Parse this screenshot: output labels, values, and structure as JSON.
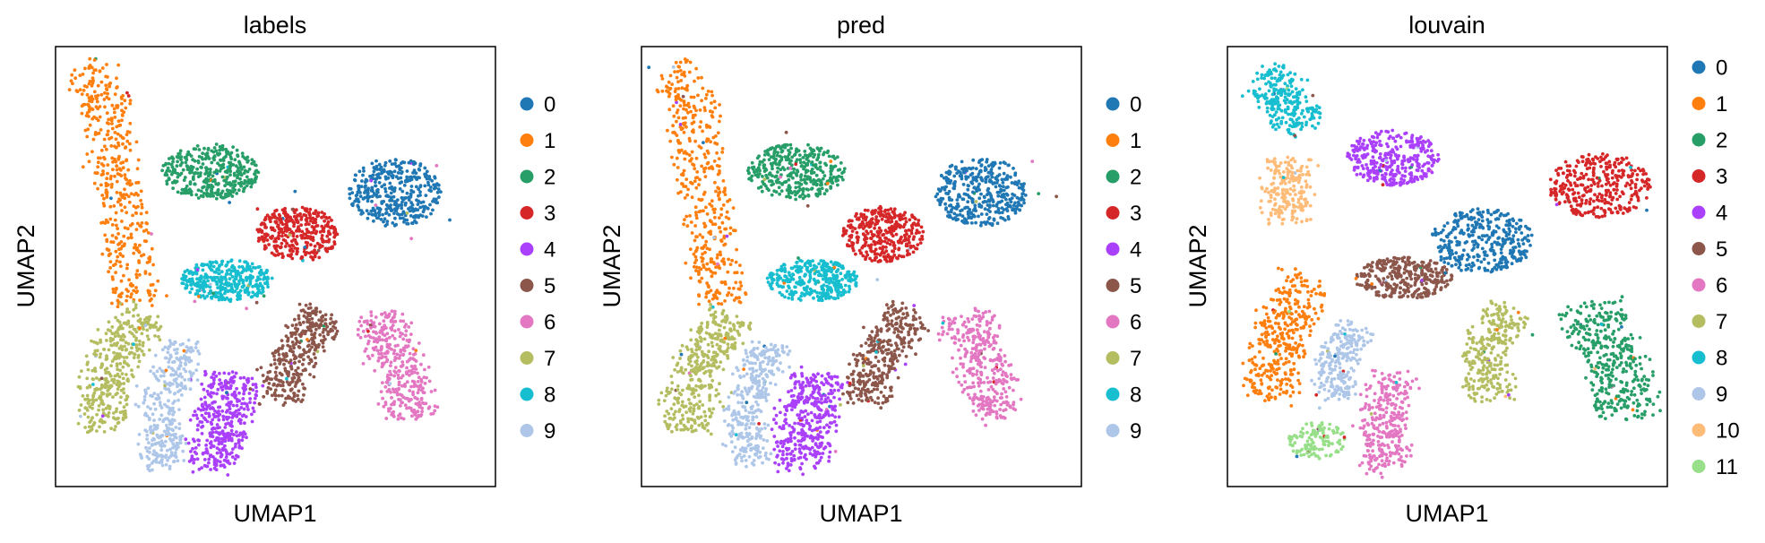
{
  "chart_data": [
    {
      "type": "scatter",
      "title": "labels",
      "xlabel": "UMAP1",
      "ylabel": "UMAP2",
      "ticks_shown": false,
      "legend_placement": "right",
      "legend": [
        "0",
        "1",
        "2",
        "3",
        "4",
        "5",
        "6",
        "7",
        "8",
        "9"
      ],
      "clusters": [
        {
          "name": "1",
          "color": "#ff7f0e",
          "path": [
            [
              -7.6,
              10.1
            ],
            [
              -6.7,
              9.0
            ],
            [
              -6.6,
              6.6
            ],
            [
              -6.2,
              4.3
            ],
            [
              -5.9,
              1.9
            ],
            [
              -5.6,
              -0.1
            ]
          ],
          "w": 1.0,
          "n": 430
        },
        {
          "name": "2",
          "color": "#279e68",
          "cx": -2.9,
          "cy": 5.6,
          "rx": 1.8,
          "ry": 1.2,
          "n": 360
        },
        {
          "name": "0",
          "color": "#1f77b4",
          "cx": 3.9,
          "cy": 4.7,
          "rx": 1.7,
          "ry": 1.5,
          "n": 380
        },
        {
          "name": "3",
          "color": "#d62728",
          "cx": 0.3,
          "cy": 2.9,
          "rx": 1.5,
          "ry": 1.2,
          "n": 340
        },
        {
          "name": "8",
          "color": "#17becf",
          "cx": -2.3,
          "cy": 0.9,
          "rx": 1.7,
          "ry": 0.9,
          "n": 340
        },
        {
          "name": "5",
          "color": "#8c564b",
          "path": [
            [
              1.4,
              -0.5
            ],
            [
              0.6,
              -1.5
            ],
            [
              -0.2,
              -3.0
            ],
            [
              -0.3,
              -4.3
            ]
          ],
          "w": 0.95,
          "n": 340
        },
        {
          "name": "6",
          "color": "#e377c2",
          "path": [
            [
              3.2,
              -0.6
            ],
            [
              3.8,
              -2.0
            ],
            [
              4.2,
              -3.4
            ],
            [
              4.5,
              -5.0
            ]
          ],
          "w": 1.05,
          "n": 340
        },
        {
          "name": "7",
          "color": "#b5bd61",
          "path": [
            [
              -5.2,
              -0.6
            ],
            [
              -6.2,
              -2.0
            ],
            [
              -6.9,
              -3.6
            ],
            [
              -6.8,
              -5.6
            ]
          ],
          "w": 1.0,
          "n": 380
        },
        {
          "name": "9",
          "color": "#aec7e8",
          "path": [
            [
              -3.8,
              -1.8
            ],
            [
              -4.3,
              -3.2
            ],
            [
              -4.8,
              -4.6
            ],
            [
              -4.6,
              -7.1
            ]
          ],
          "w": 0.8,
          "n": 330
        },
        {
          "name": "4",
          "color": "#aa40fc",
          "path": [
            [
              -2.0,
              -3.2
            ],
            [
              -2.3,
              -4.4
            ],
            [
              -2.8,
              -5.8
            ],
            [
              -2.6,
              -7.2
            ]
          ],
          "w": 1.1,
          "n": 380
        }
      ]
    },
    {
      "type": "scatter",
      "title": "pred",
      "xlabel": "UMAP1",
      "ylabel": "UMAP2",
      "ticks_shown": false,
      "legend_placement": "right",
      "legend": [
        "0",
        "1",
        "2",
        "3",
        "4",
        "5",
        "6",
        "7",
        "8",
        "9"
      ],
      "clusters": [
        {
          "name": "1",
          "color": "#ff7f0e",
          "path": [
            [
              -7.6,
              10.1
            ],
            [
              -6.7,
              9.0
            ],
            [
              -6.6,
              6.6
            ],
            [
              -6.2,
              4.3
            ],
            [
              -5.9,
              1.9
            ],
            [
              -5.6,
              -0.1
            ]
          ],
          "w": 1.0,
          "n": 430
        },
        {
          "name": "2",
          "color": "#279e68",
          "cx": -2.9,
          "cy": 5.6,
          "rx": 1.8,
          "ry": 1.2,
          "n": 360
        },
        {
          "name": "0",
          "color": "#1f77b4",
          "cx": 3.9,
          "cy": 4.7,
          "rx": 1.7,
          "ry": 1.5,
          "n": 380
        },
        {
          "name": "3",
          "color": "#d62728",
          "cx": 0.3,
          "cy": 2.9,
          "rx": 1.5,
          "ry": 1.2,
          "n": 340
        },
        {
          "name": "8",
          "color": "#17becf",
          "cx": -2.3,
          "cy": 0.9,
          "rx": 1.7,
          "ry": 0.9,
          "n": 340
        },
        {
          "name": "5",
          "color": "#8c564b",
          "path": [
            [
              1.4,
              -0.5
            ],
            [
              0.6,
              -1.5
            ],
            [
              -0.2,
              -3.0
            ],
            [
              -0.3,
              -4.3
            ]
          ],
          "w": 0.95,
          "n": 340
        },
        {
          "name": "6",
          "color": "#e377c2",
          "path": [
            [
              3.2,
              -0.6
            ],
            [
              3.8,
              -2.0
            ],
            [
              4.2,
              -3.4
            ],
            [
              4.5,
              -5.0
            ]
          ],
          "w": 1.05,
          "n": 340
        },
        {
          "name": "7",
          "color": "#b5bd61",
          "path": [
            [
              -5.2,
              -0.6
            ],
            [
              -6.2,
              -2.0
            ],
            [
              -6.9,
              -3.6
            ],
            [
              -6.8,
              -5.6
            ]
          ],
          "w": 1.0,
          "n": 380
        },
        {
          "name": "9",
          "color": "#aec7e8",
          "path": [
            [
              -3.8,
              -1.8
            ],
            [
              -4.3,
              -3.2
            ],
            [
              -4.8,
              -4.6
            ],
            [
              -4.6,
              -7.1
            ]
          ],
          "w": 0.8,
          "n": 330
        },
        {
          "name": "4",
          "color": "#aa40fc",
          "path": [
            [
              -2.0,
              -3.2
            ],
            [
              -2.3,
              -4.4
            ],
            [
              -2.8,
              -5.8
            ],
            [
              -2.6,
              -7.2
            ]
          ],
          "w": 1.1,
          "n": 380
        }
      ]
    },
    {
      "type": "scatter",
      "title": "louvain",
      "xlabel": "UMAP1",
      "ylabel": "UMAP2",
      "ticks_shown": false,
      "legend_placement": "right",
      "legend": [
        "0",
        "1",
        "2",
        "3",
        "4",
        "5",
        "6",
        "7",
        "8",
        "9",
        "10",
        "11"
      ],
      "clusters": [
        {
          "name": "8",
          "color": "#17becf",
          "path": [
            [
              -7.3,
              9.8
            ],
            [
              -6.5,
              8.9
            ],
            [
              -5.9,
              7.4
            ]
          ],
          "w": 1.0,
          "n": 250
        },
        {
          "name": "10",
          "color": "#ffbb78",
          "path": [
            [
              -6.3,
              6.1
            ],
            [
              -6.4,
              4.8
            ],
            [
              -6.5,
              3.5
            ]
          ],
          "w": 0.95,
          "n": 200
        },
        {
          "name": "4",
          "color": "#aa40fc",
          "cx": -2.5,
          "cy": 6.2,
          "rx": 1.7,
          "ry": 1.2,
          "n": 330
        },
        {
          "name": "3",
          "color": "#d62728",
          "cx": 5.1,
          "cy": 5.0,
          "rx": 1.9,
          "ry": 1.4,
          "n": 340
        },
        {
          "name": "0",
          "color": "#1f77b4",
          "cx": 0.8,
          "cy": 2.6,
          "rx": 1.9,
          "ry": 1.4,
          "n": 360
        },
        {
          "name": "5",
          "color": "#8c564b",
          "cx": -2.1,
          "cy": 1.0,
          "rx": 1.8,
          "ry": 0.9,
          "n": 310
        },
        {
          "name": "2",
          "color": "#279e68",
          "path": [
            [
              4.6,
              -0.1
            ],
            [
              5.3,
              -1.8
            ],
            [
              5.9,
              -3.2
            ],
            [
              6.1,
              -5.0
            ]
          ],
          "w": 1.3,
          "n": 370
        },
        {
          "name": "7",
          "color": "#b5bd61",
          "path": [
            [
              1.8,
              -0.3
            ],
            [
              1.0,
              -1.6
            ],
            [
              0.8,
              -3.0
            ],
            [
              1.2,
              -4.2
            ]
          ],
          "w": 0.95,
          "n": 280
        },
        {
          "name": "1",
          "color": "#ff7f0e",
          "path": [
            [
              -5.6,
              1.0
            ],
            [
              -6.3,
              -0.5
            ],
            [
              -6.9,
              -2.2
            ],
            [
              -7.0,
              -4.2
            ]
          ],
          "w": 1.1,
          "n": 360
        },
        {
          "name": "9",
          "color": "#aec7e8",
          "path": [
            [
              -3.9,
              -1.0
            ],
            [
              -4.4,
              -2.1
            ],
            [
              -4.7,
              -3.3
            ],
            [
              -4.5,
              -4.2
            ]
          ],
          "w": 0.8,
          "n": 240
        },
        {
          "name": "6",
          "color": "#e377c2",
          "path": [
            [
              -2.3,
              -3.2
            ],
            [
              -2.8,
              -4.5
            ],
            [
              -3.0,
              -5.8
            ],
            [
              -2.6,
              -7.2
            ]
          ],
          "w": 0.95,
          "n": 300
        },
        {
          "name": "11",
          "color": "#98df8a",
          "cx": -5.3,
          "cy": -6.0,
          "rx": 1.1,
          "ry": 0.8,
          "n": 120
        }
      ]
    }
  ]
}
